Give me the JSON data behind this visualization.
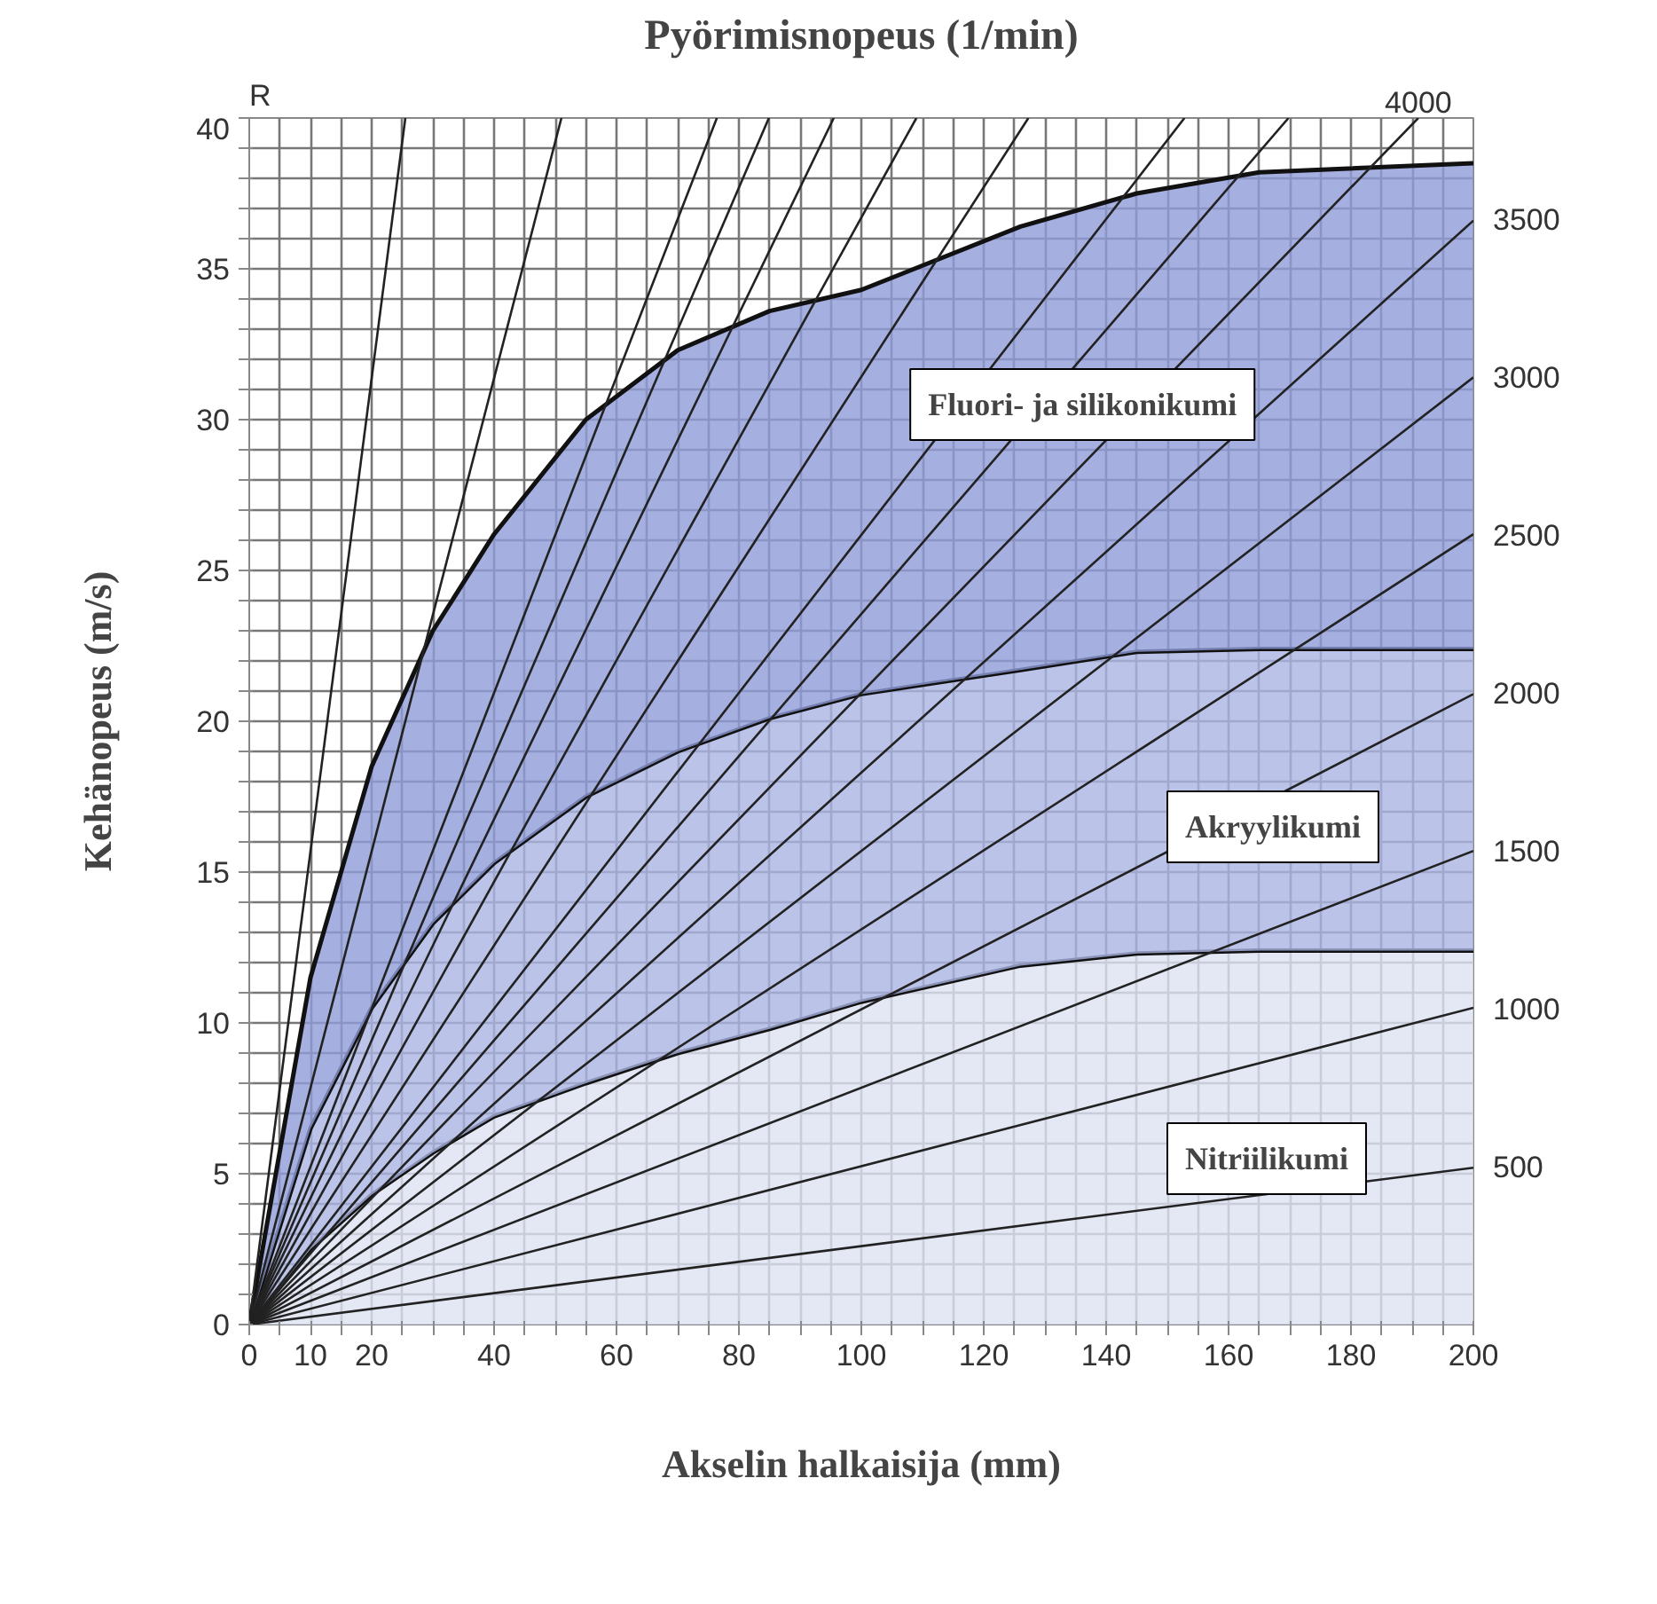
{
  "chart_data": {
    "type": "area",
    "title": "Pyörimisnopeus (1/min)",
    "xlabel": "Akselin halkaisija (mm)",
    "ylabel": "Kehänopeus (m/s)",
    "stacked": true,
    "x": [
      0,
      10,
      20,
      30,
      40,
      55,
      70,
      85,
      100,
      126,
      145,
      165,
      200
    ],
    "series": [
      {
        "name": "Nitriilikumi",
        "color": "#dde2f3",
        "values": [
          0,
          2.5,
          4.3,
          5.7,
          6.9,
          8.0,
          9.0,
          9.8,
          10.7,
          11.9,
          12.3,
          12.4,
          12.4
        ]
      },
      {
        "name": "Akryylikumi",
        "color": "#aab4e2",
        "values": [
          0,
          4.0,
          6.2,
          7.6,
          8.4,
          9.5,
          10.0,
          10.3,
          10.2,
          9.8,
          10.0,
          10.0,
          10.0
        ]
      },
      {
        "name": "Fluori- ja silikonikumi",
        "color": "#8f9bd8",
        "values": [
          0,
          5.0,
          8.0,
          9.7,
          10.9,
          12.5,
          13.3,
          13.5,
          13.4,
          14.7,
          15.2,
          15.8,
          16.1
        ]
      },
      {
        "type": "line",
        "color": "#222222",
        "x": [
          0,
          25.5
        ],
        "values": [
          0,
          40
        ]
      },
      {
        "type": "line",
        "color": "#222222",
        "x": [
          0,
          51
        ],
        "values": [
          0,
          40
        ]
      },
      {
        "type": "line",
        "color": "#222222",
        "x": [
          0,
          76.4
        ],
        "values": [
          0,
          40
        ]
      },
      {
        "type": "line",
        "color": "#222222",
        "x": [
          0,
          84.9
        ],
        "values": [
          0,
          40
        ]
      },
      {
        "type": "line",
        "color": "#222222",
        "x": [
          0,
          95.5
        ],
        "values": [
          0,
          40
        ]
      },
      {
        "type": "line",
        "color": "#222222",
        "x": [
          0,
          109
        ],
        "values": [
          0,
          40
        ]
      },
      {
        "type": "line",
        "color": "#222222",
        "x": [
          0,
          127.3
        ],
        "values": [
          0,
          40
        ]
      },
      {
        "type": "line",
        "color": "#222222",
        "x": [
          0,
          152.8
        ],
        "values": [
          0,
          40
        ]
      },
      {
        "type": "line",
        "color": "#222222",
        "x": [
          0,
          169.8
        ],
        "values": [
          0,
          40
        ]
      },
      {
        "type": "line",
        "color": "#222222",
        "x": [
          0,
          191
        ],
        "values": [
          0,
          40
        ]
      },
      {
        "type": "line",
        "color": "#222222",
        "x": [
          0,
          200
        ],
        "values": [
          0,
          36.6
        ]
      },
      {
        "type": "line",
        "color": "#222222",
        "x": [
          0,
          200
        ],
        "values": [
          0,
          31.4
        ]
      },
      {
        "type": "line",
        "color": "#222222",
        "x": [
          0,
          200
        ],
        "values": [
          0,
          26.2
        ]
      },
      {
        "type": "line",
        "color": "#222222",
        "x": [
          0,
          200
        ],
        "values": [
          0,
          20.9
        ]
      },
      {
        "type": "line",
        "color": "#222222",
        "x": [
          0,
          200
        ],
        "values": [
          0,
          15.7
        ]
      },
      {
        "type": "line",
        "color": "#222222",
        "x": [
          0,
          200
        ],
        "values": [
          0,
          10.5
        ]
      },
      {
        "type": "line",
        "color": "#222222",
        "x": [
          0,
          200
        ],
        "values": [
          0,
          5.2
        ]
      }
    ],
    "xlim": [
      0,
      200
    ],
    "xticks": [
      0,
      {
        "value": 5,
        "label": null
      },
      10,
      {
        "value": 15,
        "label": null
      },
      20,
      {
        "value": 25,
        "label": null
      },
      {
        "value": 30,
        "label": null
      },
      {
        "value": 35,
        "label": null
      },
      40,
      {
        "value": 45,
        "label": null
      },
      {
        "value": 50,
        "label": null
      },
      {
        "value": 55,
        "label": null
      },
      60,
      {
        "value": 65,
        "label": null
      },
      {
        "value": 70,
        "label": null
      },
      {
        "value": 75,
        "label": null
      },
      80,
      {
        "value": 85,
        "label": null
      },
      {
        "value": 90,
        "label": null
      },
      {
        "value": 95,
        "label": null
      },
      100,
      {
        "value": 105,
        "label": null
      },
      {
        "value": 110,
        "label": null
      },
      {
        "value": 115,
        "label": null
      },
      120,
      {
        "value": 125,
        "label": null
      },
      {
        "value": 130,
        "label": null
      },
      {
        "value": 135,
        "label": null
      },
      140,
      {
        "value": 145,
        "label": null
      },
      {
        "value": 150,
        "label": null
      },
      {
        "value": 155,
        "label": null
      },
      160,
      {
        "value": 165,
        "label": null
      },
      {
        "value": 170,
        "label": null
      },
      {
        "value": 175,
        "label": null
      },
      180,
      {
        "value": 185,
        "label": null
      },
      {
        "value": 190,
        "label": null
      },
      {
        "value": 195,
        "label": null
      },
      200
    ],
    "ylim": [
      0,
      40
    ],
    "yticks": [
      0,
      {
        "value": 1,
        "label": null
      },
      {
        "value": 2,
        "label": null
      },
      {
        "value": 3,
        "label": null
      },
      {
        "value": 4,
        "label": null
      },
      5,
      {
        "value": 6,
        "label": null
      },
      {
        "value": 7,
        "label": null
      },
      {
        "value": 8,
        "label": null
      },
      {
        "value": 9,
        "label": null
      },
      10,
      {
        "value": 11,
        "label": null
      },
      {
        "value": 12,
        "label": null
      },
      {
        "value": 13,
        "label": null
      },
      {
        "value": 14,
        "label": null
      },
      15,
      {
        "value": 16,
        "label": null
      },
      {
        "value": 17,
        "label": null
      },
      {
        "value": 18,
        "label": null
      },
      {
        "value": 19,
        "label": null
      },
      20,
      {
        "value": 21,
        "label": null
      },
      {
        "value": 22,
        "label": null
      },
      {
        "value": 23,
        "label": null
      },
      {
        "value": 24,
        "label": null
      },
      25,
      {
        "value": 26,
        "label": null
      },
      {
        "value": 27,
        "label": null
      },
      {
        "value": 28,
        "label": null
      },
      {
        "value": 29,
        "label": null
      },
      30,
      {
        "value": 31,
        "label": null
      },
      {
        "value": 32,
        "label": null
      },
      {
        "value": 33,
        "label": null
      },
      {
        "value": 34,
        "label": null
      },
      35,
      {
        "value": 36,
        "label": null
      },
      {
        "value": 37,
        "label": null
      },
      {
        "value": 38,
        "label": null
      },
      {
        "value": 39,
        "label": null
      },
      40
    ],
    "y2lim": [
      0,
      3820
    ],
    "y2ticks": [
      500,
      1000,
      1500,
      2000,
      2500,
      3000,
      3500
    ],
    "grid": true,
    "annotations": [
      "R",
      {
        "text": "4000",
        "x": 191,
        "y": 40
      }
    ]
  }
}
